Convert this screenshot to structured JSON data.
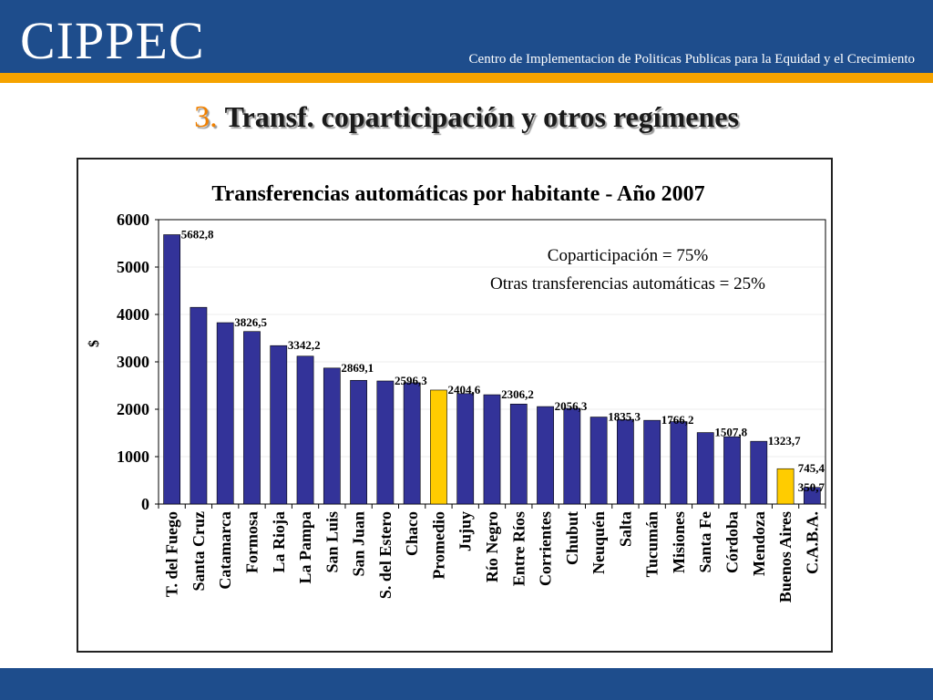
{
  "header": {
    "logo": "CIPPEC",
    "tagline": "Centro de Implementacion de Politicas Publicas para la Equidad y el Crecimiento"
  },
  "slide": {
    "number": "3.",
    "title": "Transf. coparticipación y otros regímenes"
  },
  "colors": {
    "header": "#1e4d8c",
    "accent_stripe": "#f5a300",
    "bar": "#333399",
    "highlight_bar": "#ffcc00"
  },
  "chart_data": {
    "type": "bar",
    "title": "Transferencias automáticas por habitante - Año 2007",
    "ylabel": "$",
    "xlabel": "",
    "ylim": [
      0,
      6000
    ],
    "yticks": [
      "0",
      "1000",
      "2000",
      "3000",
      "4000",
      "5000",
      "6000"
    ],
    "grid": false,
    "annotations": [
      "Coparticipación = 75%",
      "Otras transferencias automáticas = 25%"
    ],
    "categories": [
      "T. del Fuego",
      "Santa Cruz",
      "Catamarca",
      "Formosa",
      "La Rioja",
      "La Pampa",
      "San Luis",
      "San Juan",
      "S. del Estero",
      "Chaco",
      "Promedio",
      "Jujuy",
      "Río Negro",
      "Entre Ríos",
      "Corrientes",
      "Chubut",
      "Neuquén",
      "Salta",
      "Tucumán",
      "Misiones",
      "Santa Fe",
      "Córdoba",
      "Mendoza",
      "Buenos Aires",
      "C.A.B.A."
    ],
    "values": [
      5682.8,
      4150,
      3826.5,
      3640,
      3342.2,
      3120,
      2869.1,
      2610,
      2596.3,
      2560,
      2404.6,
      2330,
      2306.2,
      2110,
      2056.3,
      2020,
      1835.3,
      1780,
      1766.2,
      1740,
      1507.8,
      1420,
      1323.7,
      745.4,
      350.7
    ],
    "data_labels": [
      "5682,8",
      "",
      "3826,5",
      "",
      "3342,2",
      "",
      "2869,1",
      "",
      "2596,3",
      "",
      "2404,6",
      "",
      "2306,2",
      "",
      "2056,3",
      "",
      "1835,3",
      "",
      "1766,2",
      "",
      "1507,8",
      "",
      "1323,7",
      "745,4",
      "350,7"
    ],
    "highlighted": [
      "Promedio",
      "Buenos Aires"
    ]
  }
}
